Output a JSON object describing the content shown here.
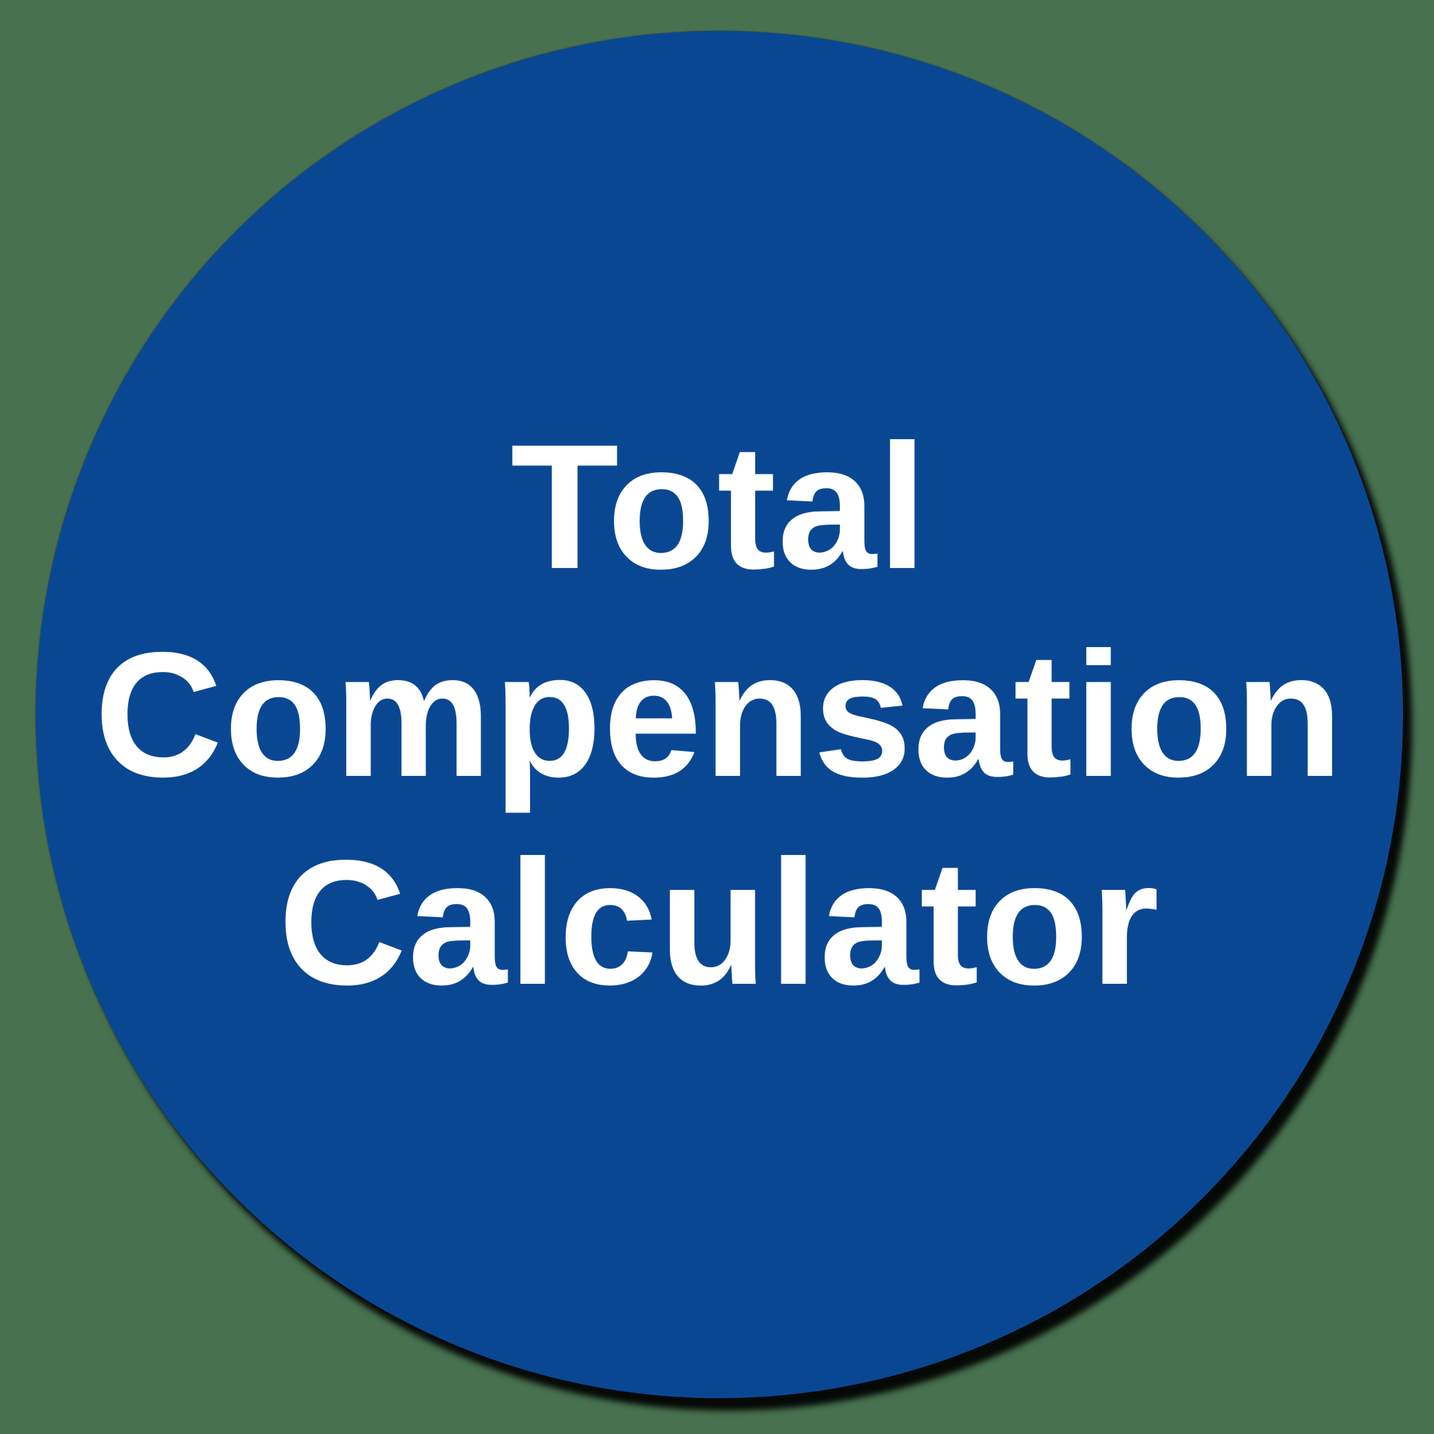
{
  "badge": {
    "full_title": "Total Compensation Calculator",
    "title_lines": [
      "Total",
      "Compensation",
      "Calculator"
    ],
    "colors": {
      "background": "#47714f",
      "circle_fill": "#0a4793",
      "text": "#ffffff",
      "shadow": "#000000"
    }
  }
}
